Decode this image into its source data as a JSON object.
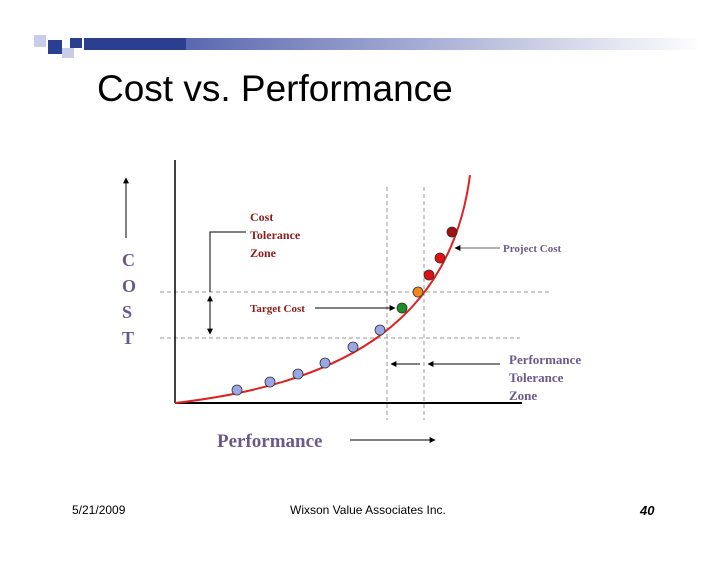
{
  "slide": {
    "title": "Cost vs. Performance",
    "footer_date": "5/21/2009",
    "footer_company": "Wixson Value Associates Inc.",
    "page_number": "40"
  },
  "diagram": {
    "y_axis_label_letters": [
      "C",
      "O",
      "S",
      "T"
    ],
    "x_axis_label": "Performance",
    "cost_tolerance_zone_lines": [
      "Cost",
      "Tolerance",
      "Zone"
    ],
    "target_cost_label": "Target Cost",
    "project_cost_label": "Project Cost",
    "performance_tolerance_zone_lines": [
      "Performance",
      "Tolerance",
      "Zone"
    ]
  },
  "colors": {
    "title_bar_blue": "#2a3f8f",
    "curve_red": "#dd2222",
    "label_dark_red": "#8b1a1a",
    "label_purple": "#6a5a8a",
    "point_blue": "#9aa6e8",
    "point_green": "#1e8a28",
    "point_orange": "#f08c1e",
    "point_red": "#dd1111",
    "point_dark_red": "#a01010"
  }
}
